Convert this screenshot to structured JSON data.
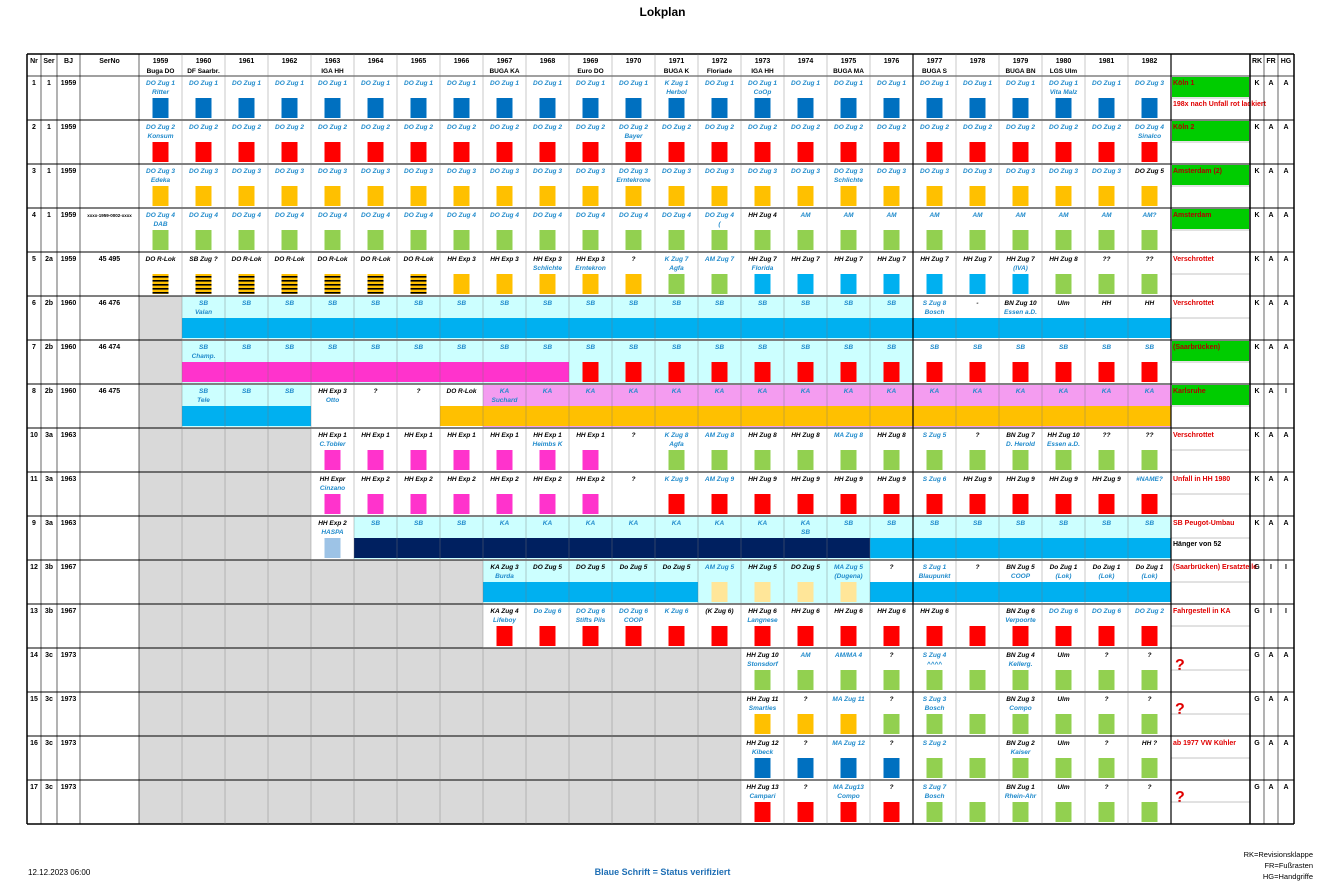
{
  "title": "Lokplan",
  "header": {
    "cols": [
      "Nr",
      "Ser",
      "BJ",
      "SerNo"
    ],
    "years": [
      "1959",
      "1960",
      "1961",
      "1962",
      "1963",
      "1964",
      "1965",
      "1966",
      "1967",
      "1968",
      "1969",
      "1970",
      "1971",
      "1972",
      "1973",
      "1974",
      "1975",
      "1976",
      "1977",
      "1978",
      "1979",
      "1980",
      "1981",
      "1982"
    ],
    "events": [
      "Buga DO",
      "DF Saarbr.",
      "",
      "",
      "IGA HH",
      "",
      "",
      "",
      "BUGA KA",
      "",
      "Euro DO",
      "",
      "BUGA K",
      "Floriade",
      "IGA HH",
      "",
      "BUGA MA",
      "",
      "BUGA S",
      "",
      "BUGA BN",
      "LGS Ulm",
      "",
      ""
    ],
    "right_cols": [
      "RK",
      "FR",
      "HG"
    ]
  },
  "colors": {
    "blue": "#0070C0",
    "red": "#FF0000",
    "yellow": "#FFC000",
    "green": "#92D050",
    "cyan": "#00B0F0",
    "magenta": "#FF33CC",
    "pink": "#F49CF0",
    "navy": "#002060",
    "lightcyan": "#CCFFFF",
    "lightblue": "#9DC3E6",
    "status_green": "#00CC00",
    "grey": "#D9D9D9",
    "text_blue": "#1F8ACB",
    "text_red": "#E00000"
  },
  "rows": [
    {
      "nr": "1",
      "ser": "1",
      "bj": "1959",
      "serno": "",
      "start": 0,
      "labels": [
        "DO Zug 1|Ritter",
        "DO Zug 1",
        "DO Zug 1",
        "DO Zug 1",
        "DO Zug 1",
        "DO Zug 1",
        "DO Zug 1",
        "DO Zug 1",
        "DO Zug 1",
        "DO Zug 1",
        "DO Zug 1",
        "DO Zug 1",
        "K Zug 1|Herbol",
        "DO Zug 1",
        "DO Zug 1|CoOp",
        "DO Zug 1",
        "DO Zug 1",
        "DO Zug 1",
        "DO Zug 1",
        "DO Zug 1",
        "DO Zug 1",
        "DO Zug 1|Vita Malz",
        "DO Zug 1",
        "DO Zug 3"
      ],
      "bars": "blue",
      "status": "Köln 1",
      "status_bg": "green",
      "note": "198x nach Unfall rot lackiert",
      "rk": "K",
      "fr": "A",
      "hg": "A"
    },
    {
      "nr": "2",
      "ser": "1",
      "bj": "1959",
      "serno": "",
      "start": 0,
      "labels": [
        "DO Zug 2|Konsum",
        "DO Zug 2",
        "DO Zug 2",
        "DO Zug 2",
        "DO Zug 2",
        "DO Zug 2",
        "DO Zug 2",
        "DO Zug 2",
        "DO Zug 2",
        "DO Zug 2",
        "DO Zug 2",
        "DO Zug 2|Bayer",
        "DO Zug 2",
        "DO Zug 2",
        "DO Zug 2",
        "DO Zug 2",
        "DO Zug 2",
        "DO Zug 2",
        "DO Zug 2",
        "DO Zug 2",
        "DO Zug 2",
        "DO Zug 2",
        "DO Zug 2",
        "DO Zug 4|Sinalco"
      ],
      "bars": "red",
      "status": "Köln 2",
      "status_bg": "green",
      "note": "",
      "rk": "K",
      "fr": "A",
      "hg": "A"
    },
    {
      "nr": "3",
      "ser": "1",
      "bj": "1959",
      "serno": "",
      "start": 0,
      "labels": [
        "DO Zug 3|Edeka",
        "DO Zug 3",
        "DO Zug 3",
        "DO Zug 3",
        "DO Zug 3",
        "DO Zug 3",
        "DO Zug 3",
        "DO Zug 3",
        "DO Zug 3",
        "DO Zug 3",
        "DO Zug 3",
        "DO Zug 3|Erntekrone",
        "DO Zug 3",
        "DO Zug 3",
        "DO Zug 3",
        "DO Zug 3",
        "DO Zug 3|Schlichte",
        "DO Zug 3",
        "DO Zug 3",
        "DO Zug 3",
        "DO Zug 3",
        "DO Zug 3",
        "DO Zug 3",
        "DO Zug 5"
      ],
      "bars": "yellow",
      "status": "Amsterdam (2)",
      "status_bg": "green",
      "note": "",
      "rk": "K",
      "fr": "A",
      "hg": "A"
    },
    {
      "nr": "4",
      "ser": "1",
      "bj": "1959",
      "serno": "xxxx-1959-0002-xxxx",
      "start": 0,
      "labels": [
        "DO Zug 4|DAB",
        "DO Zug 4",
        "DO Zug 4",
        "DO Zug 4",
        "DO Zug 4",
        "DO Zug 4",
        "DO Zug 4",
        "DO Zug 4",
        "DO Zug 4",
        "DO Zug 4",
        "DO Zug 4",
        "DO Zug 4",
        "DO Zug 4",
        "DO Zug 4|(",
        "HH Zug 4",
        "AM",
        "AM",
        "AM",
        "AM",
        "AM",
        "AM",
        "AM",
        "AM",
        "AM?"
      ],
      "bars": "green",
      "status": "Amsterdam",
      "status_bg": "green",
      "note": "",
      "rk": "K",
      "fr": "A",
      "hg": "A"
    },
    {
      "nr": "5",
      "ser": "2a",
      "bj": "1959",
      "serno": "45 495",
      "start": 0,
      "labels": [
        "DO R-Lok",
        "SB Zug ?",
        "DO R-Lok",
        "DO R-Lok",
        "DO R-Lok",
        "DO R-Lok",
        "DO R-Lok",
        "HH Exp 3",
        "HH Exp 3",
        "HH Exp 3|Schlichte",
        "HH Exp 3|Erntekron",
        "?",
        "K Zug 7|Agfa",
        "AM Zug 7",
        "HH Zug 7|Florida",
        "HH Zug 7",
        "HH Zug 7",
        "HH Zug 7",
        "HH Zug 7",
        "HH Zug 7",
        "HH Zug 7|(IVA)",
        "HH Zug 8",
        "??",
        "??"
      ],
      "bars": "s5",
      "status": "Verschrottet",
      "status_bg": "",
      "note": "",
      "rk": "K",
      "fr": "A",
      "hg": "A"
    },
    {
      "nr": "6",
      "ser": "2b",
      "bj": "1960",
      "serno": "46 476",
      "start": 1,
      "labels": [
        "",
        "SB|Valan",
        "SB",
        "SB",
        "SB",
        "SB",
        "SB",
        "SB",
        "SB",
        "SB",
        "SB",
        "SB",
        "SB",
        "SB",
        "SB",
        "SB",
        "SB",
        "SB",
        "S Zug 8|Bosch",
        "-",
        "BN Zug 10|Essen a.D.",
        "Ulm",
        "HH",
        "HH"
      ],
      "bars": "cyan",
      "status": "Verschrottet",
      "status_bg": "",
      "note": "",
      "rk": "K",
      "fr": "A",
      "hg": "A"
    },
    {
      "nr": "7",
      "ser": "2b",
      "bj": "1960",
      "serno": "46 474",
      "start": 1,
      "labels": [
        "",
        "SB|Champ.",
        "SB",
        "SB",
        "SB",
        "SB",
        "SB",
        "SB",
        "SB",
        "SB",
        "SB",
        "SB",
        "SB",
        "SB",
        "SB",
        "SB",
        "SB",
        "SB",
        "SB",
        "SB",
        "SB",
        "SB",
        "SB",
        "SB"
      ],
      "bars": "s7",
      "status": "(Saarbrücken)",
      "status_bg": "green",
      "note": "",
      "rk": "K",
      "fr": "A",
      "hg": "A"
    },
    {
      "nr": "8",
      "ser": "2b",
      "bj": "1960",
      "serno": "46 475",
      "start": 1,
      "labels": [
        "",
        "SB|Tele",
        "SB",
        "SB",
        "HH Exp 3|Otto",
        "?",
        "?",
        "DO R-Lok",
        "KA|Suchard",
        "KA",
        "KA",
        "KA",
        "KA",
        "KA",
        "KA",
        "KA",
        "KA",
        "KA",
        "KA",
        "KA",
        "KA",
        "KA",
        "KA",
        "KA"
      ],
      "bars": "s8",
      "status": "Karlsruhe",
      "status_bg": "green",
      "note": "",
      "rk": "K",
      "fr": "A",
      "hg": "I"
    },
    {
      "nr": "10",
      "ser": "3a",
      "bj": "1963",
      "serno": "",
      "start": 4,
      "labels": [
        "",
        "",
        "",
        "",
        "HH Exp 1|C.Tobler",
        "HH Exp 1",
        "HH Exp 1",
        "HH Exp 1",
        "HH Exp 1",
        "HH Exp 1|Heimbs K",
        "HH Exp 1",
        "?",
        "K Zug 8|Agfa",
        "AM Zug 8",
        "HH Zug 8",
        "HH Zug 8",
        "MA Zug 8",
        "HH Zug 8",
        "S Zug 5",
        "?",
        "BN Zug 7|D. Herold",
        "HH Zug 10|Essen a.D.",
        "??",
        "??"
      ],
      "bars": "s10",
      "status": "Verschrottet",
      "status_bg": "",
      "note": "",
      "rk": "K",
      "fr": "A",
      "hg": "A"
    },
    {
      "nr": "11",
      "ser": "3a",
      "bj": "1963",
      "serno": "",
      "start": 4,
      "labels": [
        "",
        "",
        "",
        "",
        "HH Expr|Cinzano",
        "HH Exp 2",
        "HH Exp 2",
        "HH Exp 2",
        "HH Exp 2",
        "HH Exp 2",
        "HH Exp 2",
        "?",
        "K Zug 9",
        "AM Zug 9",
        "HH Zug 9",
        "HH Zug 9",
        "HH Zug 9",
        "HH Zug 9",
        "S Zug 6",
        "HH Zug 9",
        "HH Zug 9",
        "HH Zug 9",
        "HH Zug 9",
        "#NAME?"
      ],
      "bars": "s11",
      "status": "Unfall in HH 1980",
      "status_bg": "",
      "note": "",
      "rk": "K",
      "fr": "A",
      "hg": "A"
    },
    {
      "nr": "9",
      "ser": "3a",
      "bj": "1963",
      "serno": "",
      "start": 4,
      "labels": [
        "",
        "",
        "",
        "",
        "HH Exp 2|HASPA",
        "SB",
        "SB",
        "SB",
        "KA",
        "KA",
        "KA",
        "KA",
        "KA",
        "KA",
        "KA",
        "KA|SB",
        "SB",
        "SB",
        "SB",
        "SB",
        "SB",
        "SB",
        "SB",
        "SB"
      ],
      "bars": "s9",
      "status": "SB Peugot-Umbau",
      "status_bg": "",
      "note": "Hänger von 52",
      "rk": "K",
      "fr": "A",
      "hg": "A"
    },
    {
      "nr": "12",
      "ser": "3b",
      "bj": "1967",
      "serno": "",
      "start": 8,
      "labels": [
        "",
        "",
        "",
        "",
        "",
        "",
        "",
        "",
        "KA Zug 3|Burda",
        "DO Zug 5",
        "DO Zug 5",
        "Do Zug 5",
        "Do Zug 5",
        "AM Zug 5",
        "HH Zug 5",
        "DO Zug 5",
        "MA Zug 5|(Dugena)",
        "?",
        "S Zug 1|Blaupunkt",
        "?",
        "BN Zug 5|COOP",
        "Do Zug 1|(Lok)",
        "Do Zug 1|(Lok)",
        "Do Zug 1|(Lok)"
      ],
      "bars": "s12",
      "status": "(Saarbrücken) Ersatzteile",
      "status_bg": "",
      "note": "",
      "rk": "G",
      "fr": "I",
      "hg": "I"
    },
    {
      "nr": "13",
      "ser": "3b",
      "bj": "1967",
      "serno": "",
      "start": 8,
      "labels": [
        "",
        "",
        "",
        "",
        "",
        "",
        "",
        "",
        "KA Zug 4|Lifeboy",
        "Do Zug 6",
        "DO Zug 6|Stifts Pils",
        "DO Zug 6|COOP",
        "K Zug 6",
        "(K Zug 6)",
        "HH Zug 6|Langnese",
        "HH Zug 6",
        "HH Zug 6",
        "HH Zug 6",
        "HH Zug 6",
        "",
        "BN Zug 6|Verpoorte",
        "DO Zug 6",
        "DO Zug 6",
        "DO Zug 2"
      ],
      "bars": "s13",
      "status": "Fahrgestell in KA",
      "status_bg": "",
      "note": "",
      "rk": "G",
      "fr": "I",
      "hg": "I"
    },
    {
      "nr": "14",
      "ser": "3c",
      "bj": "1973",
      "serno": "",
      "start": 14,
      "labels": [
        "",
        "",
        "",
        "",
        "",
        "",
        "",
        "",
        "",
        "",
        "",
        "",
        "",
        "",
        "HH Zug 10|Stonsdorf",
        "AM",
        "AM/MA 4",
        "?",
        "S Zug 4|^^^^",
        "",
        "BN Zug 4|Kellerg.",
        "Ulm",
        "?",
        "?"
      ],
      "bars": "green",
      "status": "?",
      "status_bg": "",
      "note": "",
      "rk": "G",
      "fr": "A",
      "hg": "A"
    },
    {
      "nr": "15",
      "ser": "3c",
      "bj": "1973",
      "serno": "",
      "start": 14,
      "labels": [
        "",
        "",
        "",
        "",
        "",
        "",
        "",
        "",
        "",
        "",
        "",
        "",
        "",
        "",
        "HH Zug 11|Smarties",
        "?",
        "MA Zug 11",
        "?",
        "S Zug 3|Bosch",
        "",
        "BN Zug 3|Compo",
        "Ulm",
        "?",
        "?"
      ],
      "bars": "s15",
      "status": "?",
      "status_bg": "",
      "note": "",
      "rk": "G",
      "fr": "A",
      "hg": "A"
    },
    {
      "nr": "16",
      "ser": "3c",
      "bj": "1973",
      "serno": "",
      "start": 14,
      "labels": [
        "",
        "",
        "",
        "",
        "",
        "",
        "",
        "",
        "",
        "",
        "",
        "",
        "",
        "",
        "HH Zug 12|Kibeck",
        "?",
        "MA Zug 12",
        "?",
        "S Zug 2",
        "",
        "BN Zug 2|Kaiser",
        "Ulm",
        "?",
        "HH ?"
      ],
      "bars": "s16",
      "status": "ab 1977 VW Kühler",
      "status_bg": "",
      "note": "",
      "rk": "G",
      "fr": "A",
      "hg": "A"
    },
    {
      "nr": "17",
      "ser": "3c",
      "bj": "1973",
      "serno": "",
      "start": 14,
      "labels": [
        "",
        "",
        "",
        "",
        "",
        "",
        "",
        "",
        "",
        "",
        "",
        "",
        "",
        "",
        "HH Zug 13|Campari",
        "?",
        "MA Zug13|Compo",
        "?",
        "S Zug 7|Bosch",
        "",
        "BN Zug 1|Rhein-Ahr",
        "Ulm",
        "?",
        "?"
      ],
      "bars": "s17",
      "status": "?",
      "status_bg": "",
      "note": "",
      "rk": "G",
      "fr": "A",
      "hg": "A"
    }
  ],
  "footer": {
    "date": "12.12.2023 06:00",
    "legend": "Blaue Schrift = Status verifiziert",
    "abbr": [
      "RK=Revisionsklappe",
      "FR=Fußrasten",
      "HG=Handgriffe"
    ]
  }
}
